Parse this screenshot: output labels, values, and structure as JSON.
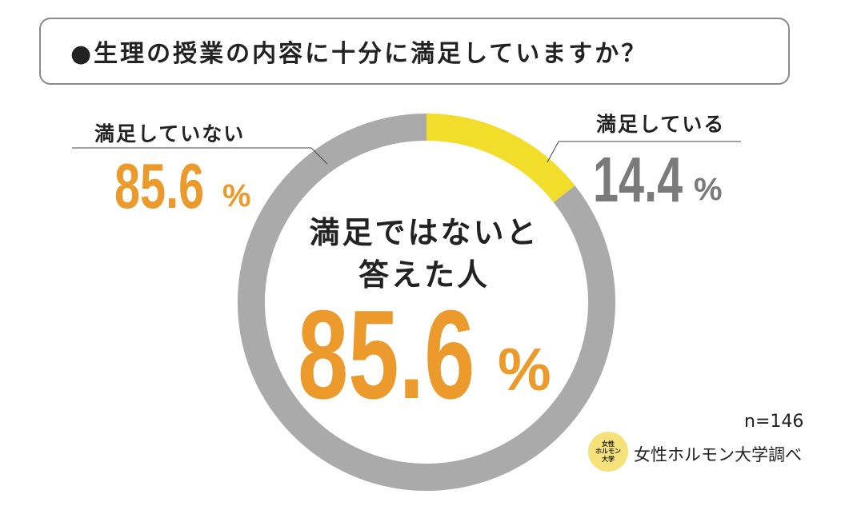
{
  "title": "●生理の授業の内容に十分に満足していますか？",
  "chart_data": {
    "type": "pie",
    "style": "donut",
    "categories": [
      "満足している",
      "満足していない"
    ],
    "values": [
      14.4,
      85.6
    ],
    "unit": "%",
    "colors": [
      "#f2de2a",
      "#aaaaaa"
    ],
    "start_angle_deg": 0,
    "direction": "clockwise"
  },
  "labels": {
    "satisfied": {
      "text": "満足している",
      "value": "14.4",
      "unit": "%"
    },
    "not_satisfied": {
      "text": "満足していない",
      "value": "85.6",
      "unit": "%"
    }
  },
  "center": {
    "line1": "満足ではないと",
    "line2": "答えた人",
    "value": "85.6",
    "unit": "%"
  },
  "footer": {
    "n": "n=146",
    "source": "女性ホルモン大学調べ",
    "badge_lines": [
      "女性",
      "ホルモン",
      "大学"
    ]
  },
  "colors": {
    "accent_orange": "#ec9a2b",
    "value_gray": "#7a7a7a",
    "ring_gray": "#aaaaaa",
    "ring_yellow": "#f2de2a"
  }
}
